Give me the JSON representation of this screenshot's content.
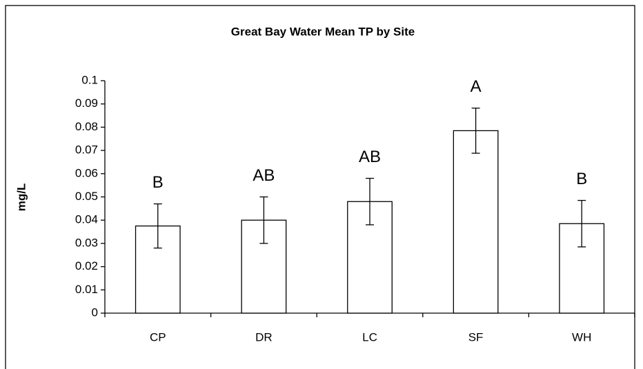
{
  "chart_data": {
    "type": "bar",
    "title": "Great Bay Water Mean TP by Site",
    "y_label": "mg/L",
    "categories": [
      "CP",
      "DR",
      "LC",
      "SF",
      "WH"
    ],
    "values": [
      0.0375,
      0.04,
      0.048,
      0.0785,
      0.0385
    ],
    "errors": [
      0.0095,
      0.01,
      0.01,
      0.0097,
      0.01
    ],
    "annotations": [
      "B",
      "AB",
      "AB",
      "A",
      "B"
    ],
    "color": "#ffffff",
    "edge_color": "#000000",
    "ylim": [
      0,
      0.1
    ],
    "yticks": [
      0,
      0.01,
      0.02,
      0.03,
      0.04,
      0.05,
      0.06,
      0.07,
      0.08,
      0.09,
      0.1
    ],
    "grid": false
  }
}
